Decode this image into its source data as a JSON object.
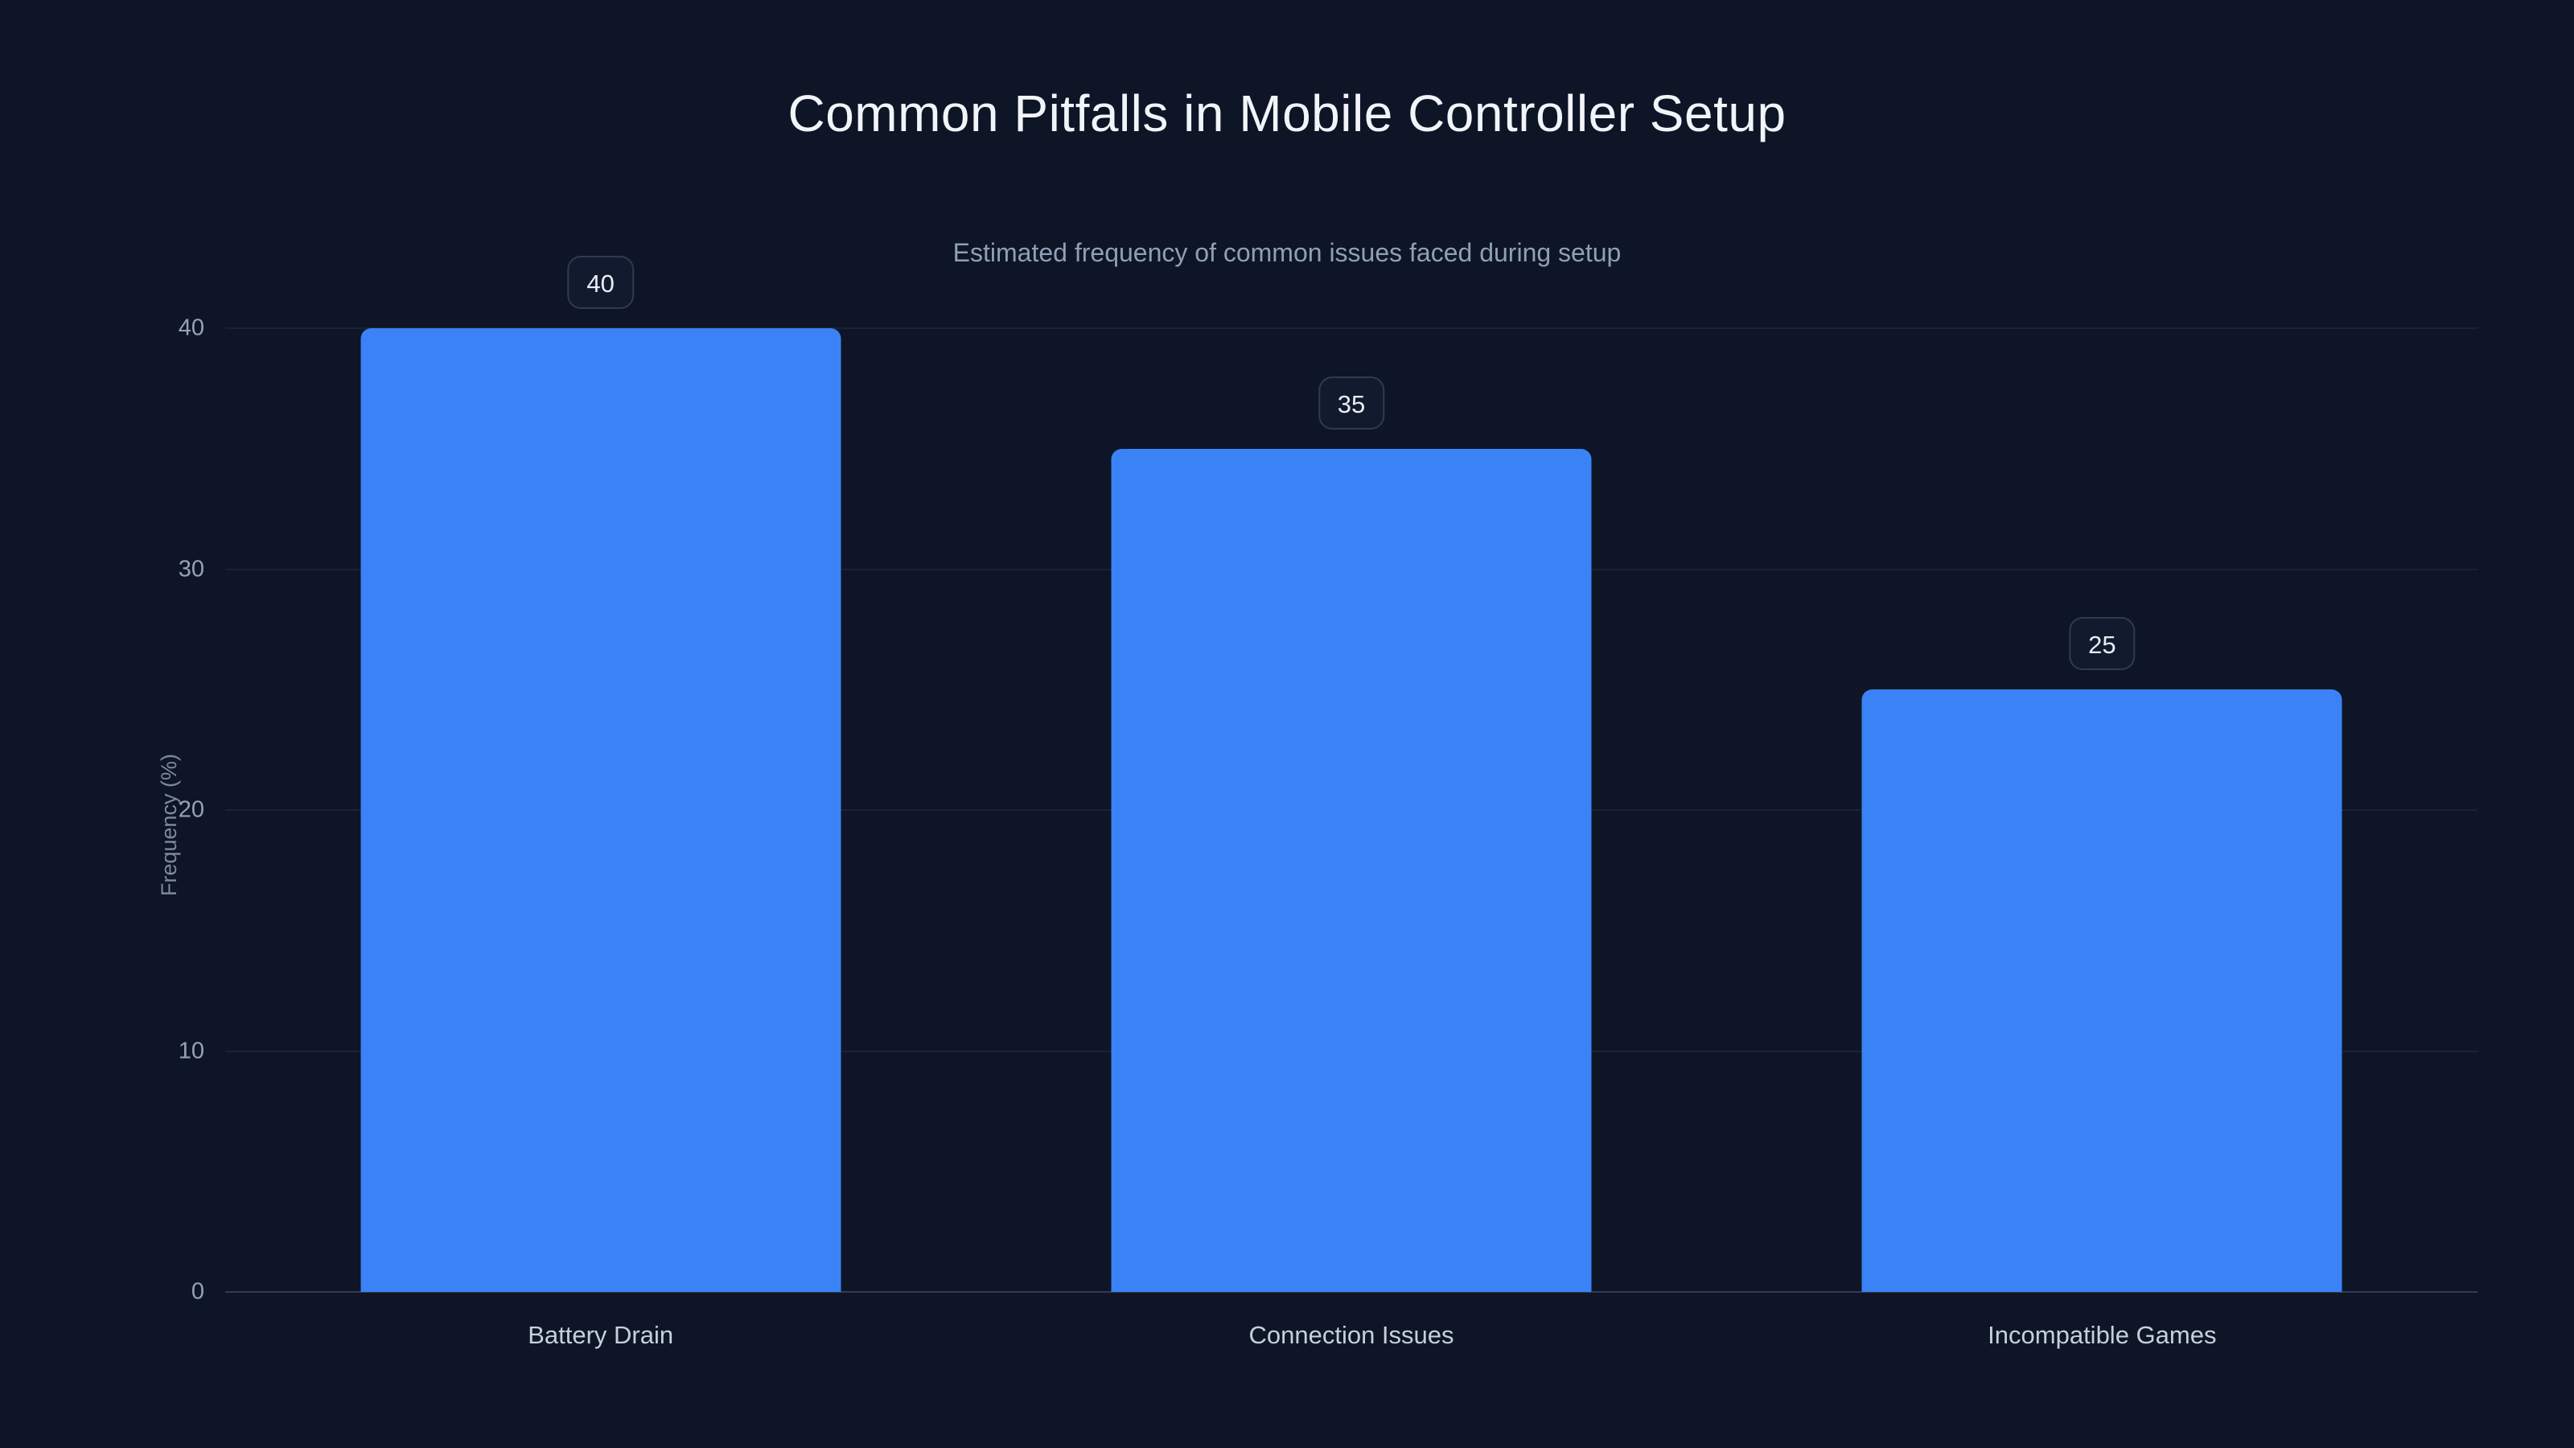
{
  "header": {
    "title": "Common Pitfalls in Mobile Controller Setup",
    "subtitle": "Estimated frequency of common issues faced during setup"
  },
  "chart_data": {
    "type": "bar",
    "title": "Common Pitfalls in Mobile Controller Setup",
    "subtitle": "Estimated frequency of common issues faced during setup",
    "categories": [
      "Battery Drain",
      "Connection Issues",
      "Incompatible Games"
    ],
    "values": [
      40,
      35,
      25
    ],
    "value_labels": [
      "40",
      "35",
      "25"
    ],
    "xlabel": "",
    "ylabel": "Frequency (%)",
    "ylim": [
      0,
      40
    ],
    "yticks": [
      0,
      10,
      20,
      30,
      40
    ],
    "grid": "horizontal",
    "legend": "none",
    "colors": {
      "bar": "#3b82f6",
      "background": "#0d1526",
      "title_text": "#f1f5f9",
      "subtitle_text": "#8fa0b5",
      "tick_text": "#94a3b8"
    }
  }
}
